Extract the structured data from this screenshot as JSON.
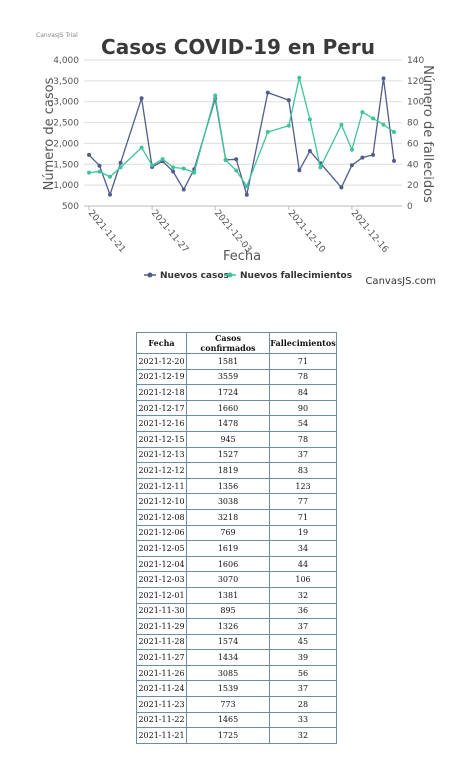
{
  "chart_data": {
    "type": "line",
    "trial_watermark": "CanvasJS Trial",
    "title": "Casos COVID-19 en Peru",
    "xlabel": "Fecha",
    "ylabel": "Número de casos",
    "y2label": "Número de fallecidos",
    "credit": "CanvasJS.com",
    "ylim": [
      500,
      4000
    ],
    "y_ticks": [
      "500",
      "1,000",
      "1,500",
      "2,000",
      "2,500",
      "3,000",
      "3,500",
      "4,000"
    ],
    "y2lim": [
      0,
      140
    ],
    "y2_ticks": [
      "0",
      "20",
      "40",
      "60",
      "80",
      "100",
      "120",
      "140"
    ],
    "x_ticks": [
      "2021-11-21",
      "2021-11-27",
      "2021-12-03",
      "2021-12-10",
      "2021-12-16"
    ],
    "x_tick_dates": [
      "2021-11-21",
      "2021-11-27",
      "2021-12-03",
      "2021-12-10",
      "2021-12-16"
    ],
    "dates": [
      "2021-11-21",
      "2021-11-22",
      "2021-11-23",
      "2021-11-24",
      "2021-11-26",
      "2021-11-27",
      "2021-11-28",
      "2021-11-29",
      "2021-11-30",
      "2021-12-01",
      "2021-12-03",
      "2021-12-04",
      "2021-12-05",
      "2021-12-06",
      "2021-12-08",
      "2021-12-10",
      "2021-12-11",
      "2021-12-12",
      "2021-12-13",
      "2021-12-15",
      "2021-12-16",
      "2021-12-17",
      "2021-12-18",
      "2021-12-19",
      "2021-12-20"
    ],
    "grid": true,
    "legend_position": "bottom",
    "series": [
      {
        "name": "Nuevos casos",
        "axis": "left",
        "color": "#4f5d8c",
        "values": [
          1725,
          1465,
          773,
          1539,
          3085,
          1434,
          1574,
          1326,
          895,
          1381,
          3070,
          1606,
          1619,
          769,
          3218,
          3038,
          1356,
          1819,
          1527,
          945,
          1478,
          1660,
          1724,
          3559,
          1581
        ]
      },
      {
        "name": "Nuevos fallecimientos",
        "axis": "right",
        "color": "#3ec49a",
        "values": [
          32,
          33,
          28,
          37,
          56,
          39,
          45,
          37,
          36,
          32,
          106,
          44,
          34,
          19,
          71,
          77,
          123,
          83,
          37,
          78,
          54,
          90,
          84,
          78,
          71
        ]
      }
    ]
  },
  "table": {
    "headers": [
      "Fecha",
      "Casos confirmados",
      "Fallecimientos"
    ],
    "rows": [
      [
        "2021-12-20",
        "1581",
        "71"
      ],
      [
        "2021-12-19",
        "3559",
        "78"
      ],
      [
        "2021-12-18",
        "1724",
        "84"
      ],
      [
        "2021-12-17",
        "1660",
        "90"
      ],
      [
        "2021-12-16",
        "1478",
        "54"
      ],
      [
        "2021-12-15",
        "945",
        "78"
      ],
      [
        "2021-12-13",
        "1527",
        "37"
      ],
      [
        "2021-12-12",
        "1819",
        "83"
      ],
      [
        "2021-12-11",
        "1356",
        "123"
      ],
      [
        "2021-12-10",
        "3038",
        "77"
      ],
      [
        "2021-12-08",
        "3218",
        "71"
      ],
      [
        "2021-12-06",
        "769",
        "19"
      ],
      [
        "2021-12-05",
        "1619",
        "34"
      ],
      [
        "2021-12-04",
        "1606",
        "44"
      ],
      [
        "2021-12-03",
        "3070",
        "106"
      ],
      [
        "2021-12-01",
        "1381",
        "32"
      ],
      [
        "2021-11-30",
        "895",
        "36"
      ],
      [
        "2021-11-29",
        "1326",
        "37"
      ],
      [
        "2021-11-28",
        "1574",
        "45"
      ],
      [
        "2021-11-27",
        "1434",
        "39"
      ],
      [
        "2021-11-26",
        "3085",
        "56"
      ],
      [
        "2021-11-24",
        "1539",
        "37"
      ],
      [
        "2021-11-23",
        "773",
        "28"
      ],
      [
        "2021-11-22",
        "1465",
        "33"
      ],
      [
        "2021-11-21",
        "1725",
        "32"
      ]
    ]
  }
}
